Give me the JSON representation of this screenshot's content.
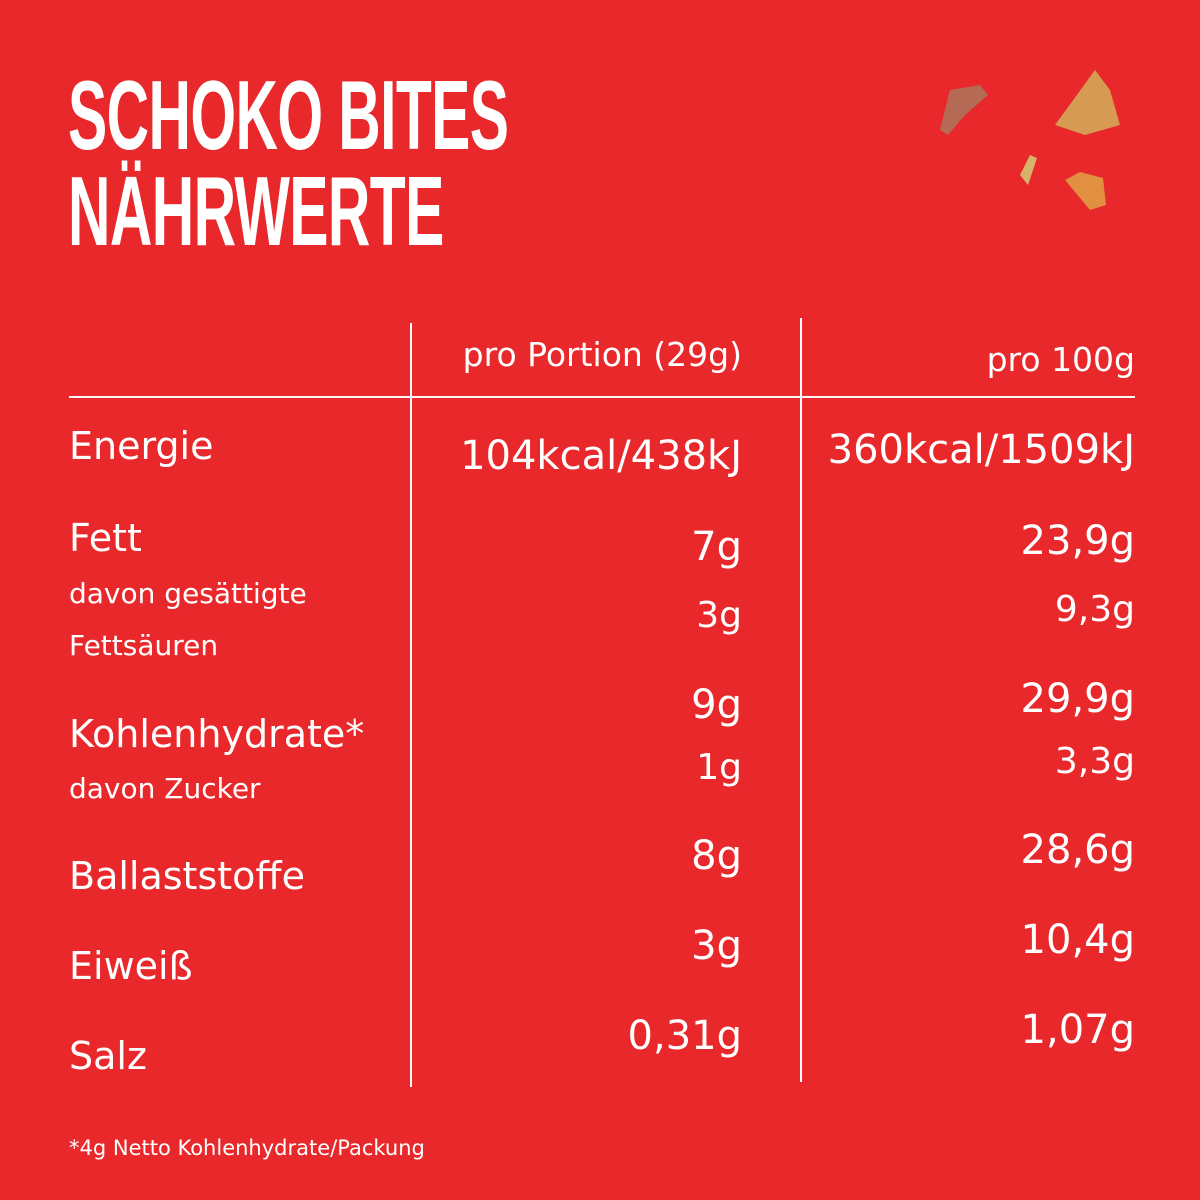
{
  "title": {
    "line1": "SCHOKO BITES",
    "line2": "NÄHRWERTE"
  },
  "colors": {
    "background": "#E8282A",
    "text": "#FFFFFF"
  },
  "decoration": "chocolate-pieces",
  "table": {
    "headers": [
      "pro Portion (29g)",
      "pro 100g"
    ],
    "rows": [
      {
        "label": "Energie",
        "portion": "104kcal/438kJ",
        "per100": "360kcal/1509kJ"
      },
      {
        "label": "Fett",
        "portion": "7g",
        "per100": "23,9g"
      },
      {
        "label": "davon gesättigte",
        "label2": "Fettsäuren",
        "portion": "3g",
        "per100": "9,3g"
      },
      {
        "label": "Kohlenhydrate*",
        "portion": "9g",
        "per100": "29,9g"
      },
      {
        "label": "davon Zucker",
        "portion": "1g",
        "per100": "3,3g"
      },
      {
        "label": "Ballaststoffe",
        "portion": "8g",
        "per100": "28,6g"
      },
      {
        "label": "Eiweiß",
        "portion": "3g",
        "per100": "10,4g"
      },
      {
        "label": "Salz",
        "portion": "0,31g",
        "per100": "1,07g"
      }
    ]
  },
  "footnote": "*4g Netto Kohlenhydrate/Packung"
}
